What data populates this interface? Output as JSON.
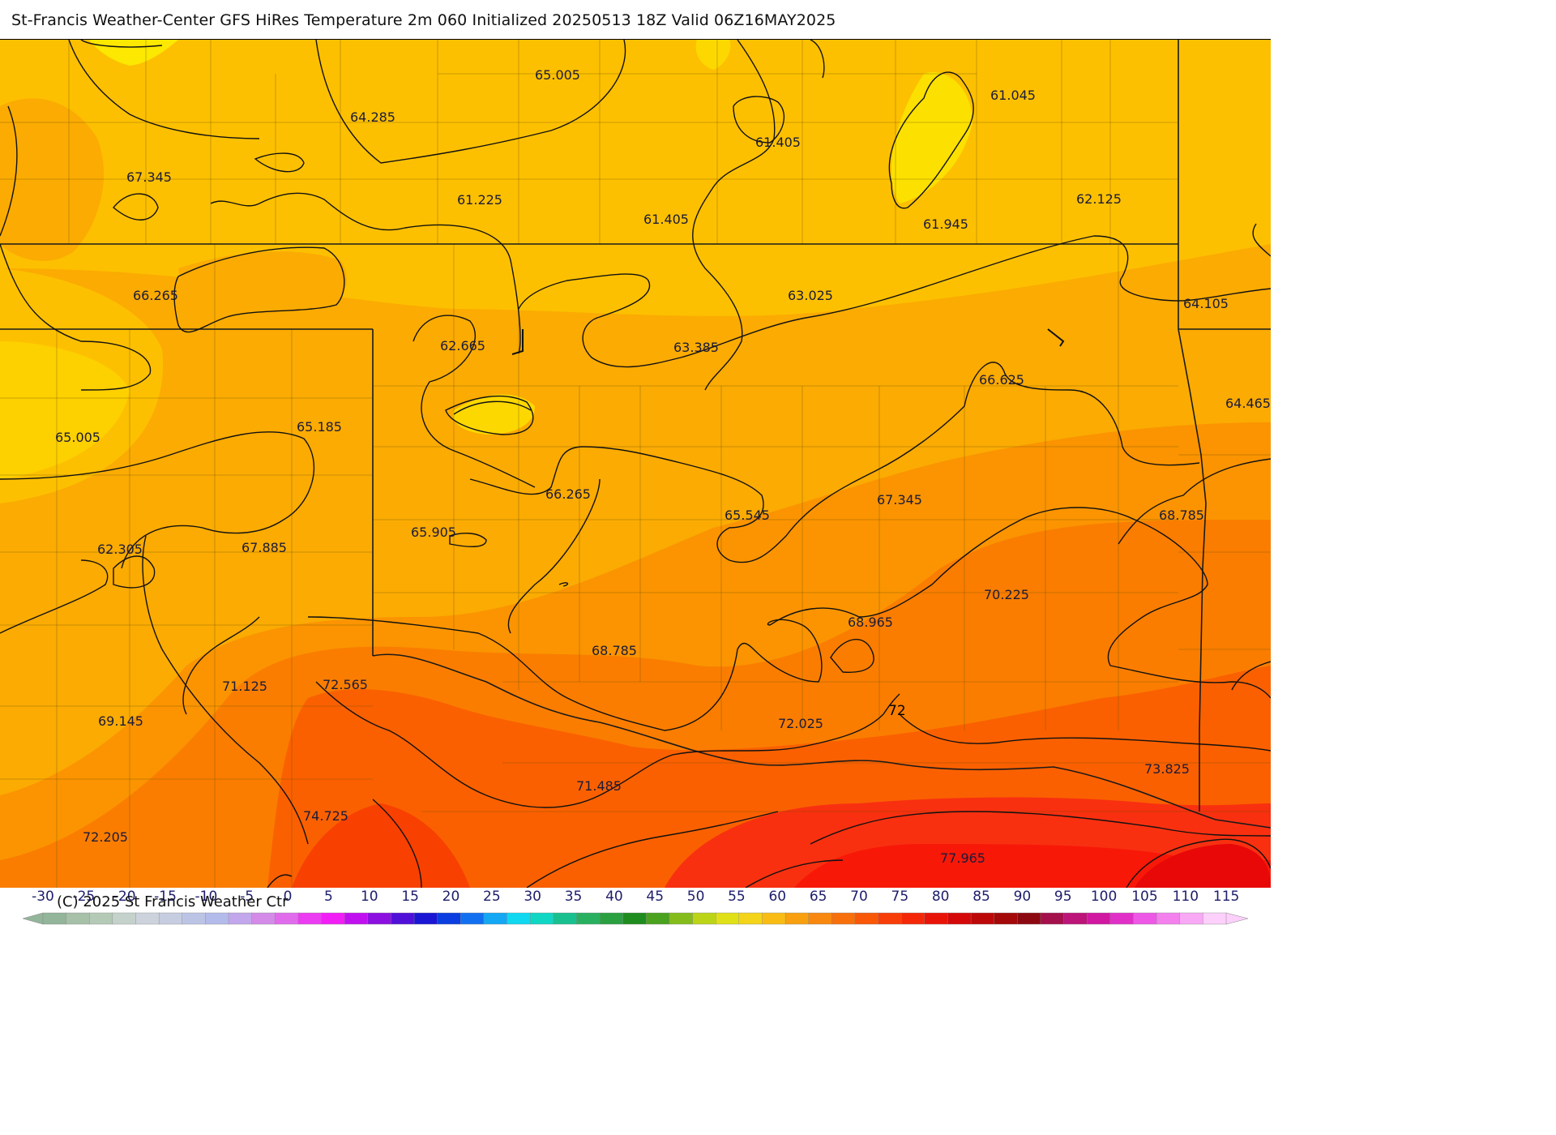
{
  "title": "St-Francis Weather-Center GFS HiRes Temperature 2m  060 Initialized 20250513 18Z Valid 06Z16MAY2025",
  "copyright": "(C) 2025 St Francis Weather Ctr",
  "contour_label": "72",
  "values": [
    "65.005",
    "64.285",
    "61.045",
    "61.405",
    "67.345",
    "61.225",
    "61.405",
    "61.945",
    "62.125",
    "66.265",
    "63.025",
    "64.105",
    "62.665",
    "63.385",
    "66.625",
    "64.465",
    "65.005",
    "65.185",
    "66.265",
    "67.345",
    "65.545",
    "68.785",
    "65.905",
    "62.305",
    "67.885",
    "70.225",
    "68.965",
    "68.785",
    "71.125",
    "72.565",
    "69.145",
    "72.025",
    "71.485",
    "73.825",
    "74.725",
    "72.205",
    "77.965"
  ],
  "scale": {
    "ticks": [
      "-30",
      "-25",
      "-20",
      "-15",
      "-10",
      "-5",
      "0",
      "5",
      "10",
      "15",
      "20",
      "25",
      "30",
      "35",
      "40",
      "45",
      "50",
      "55",
      "60",
      "65",
      "70",
      "75",
      "80",
      "85",
      "90",
      "95",
      "100",
      "105",
      "110",
      "115"
    ],
    "colors": [
      "#93b59a",
      "#a7c0a8",
      "#b5c9b7",
      "#c5d2cc",
      "#cdd3dc",
      "#c6cde0",
      "#bcc4e6",
      "#b3bbea",
      "#c2a7ec",
      "#d48be8",
      "#e06cec",
      "#ec3cf2",
      "#f21ef6",
      "#c010f0",
      "#8c10e0",
      "#5010d8",
      "#1a16d4",
      "#0a3ee0",
      "#1270f0",
      "#14a8f4",
      "#10d8f0",
      "#10d6c4",
      "#18c090",
      "#28b060",
      "#2aa040",
      "#1f8c1f",
      "#4aa21e",
      "#84bc1c",
      "#bcd418",
      "#e0e018",
      "#f4d418",
      "#f8bc14",
      "#f8a010",
      "#f88810",
      "#f8700c",
      "#f85808",
      "#f83e08",
      "#f42808",
      "#e81408",
      "#d40808",
      "#bc0808",
      "#a40808",
      "#8c0810",
      "#a4104c",
      "#bc1478",
      "#d018a0",
      "#e030c8",
      "#ee58e6",
      "#f480ee",
      "#f8a8f4",
      "#fcd0fa"
    ]
  }
}
